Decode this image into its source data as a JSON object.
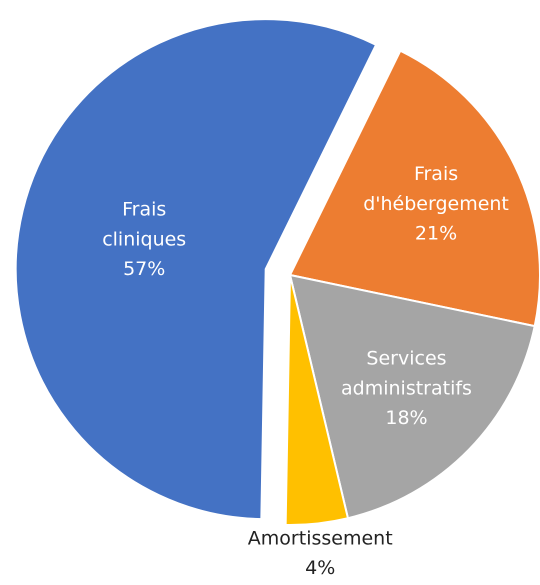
{
  "chart_data": {
    "type": "pie",
    "categories": [
      "Frais cliniques",
      "Frais d'hébergement",
      "Services administratifs",
      "Amortissement"
    ],
    "values": [
      57,
      21,
      18,
      4
    ],
    "value_labels": [
      "57%",
      "21%",
      "18%",
      "4%"
    ],
    "colors": [
      "#4472c4",
      "#ed7d31",
      "#a5a5a5",
      "#ffc000"
    ]
  }
}
